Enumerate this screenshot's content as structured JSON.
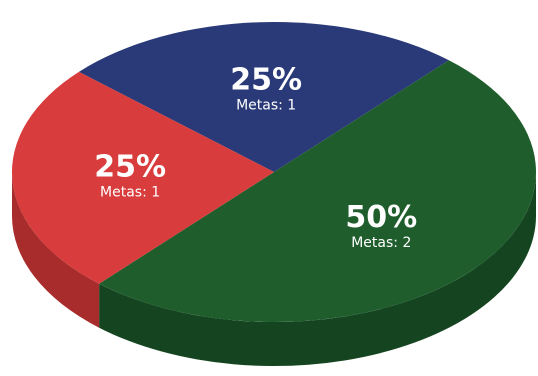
{
  "chart_data": {
    "type": "pie",
    "slices": [
      {
        "percent_label": "25%",
        "detail_label": "Metas: 1",
        "value": 1,
        "share": 25,
        "color": "#2a3a78",
        "side_color": "#1e2b5c"
      },
      {
        "percent_label": "50%",
        "detail_label": "Metas: 2",
        "value": 2,
        "share": 50,
        "color": "#1f5e2c",
        "side_color": "#154520"
      },
      {
        "percent_label": "25%",
        "detail_label": "Metas: 1",
        "value": 1,
        "share": 25,
        "color": "#d83c3c",
        "side_color": "#a82c2c"
      }
    ]
  }
}
